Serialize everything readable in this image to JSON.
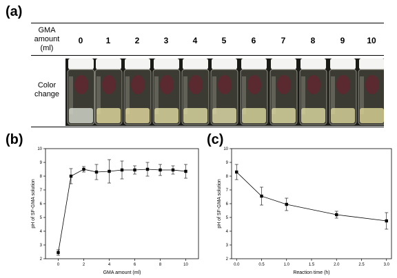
{
  "panels": {
    "a": "(a)",
    "b": "(b)",
    "c": "(c)"
  },
  "table": {
    "header_label": [
      "GMA",
      "amount",
      "(ml)"
    ],
    "amounts": [
      "0",
      "1",
      "2",
      "3",
      "4",
      "5",
      "6",
      "7",
      "8",
      "9",
      "10"
    ],
    "row_label": [
      "Color",
      "change"
    ]
  },
  "chart_data": [
    {
      "type": "line",
      "xlabel": "GMA amount (ml)",
      "ylabel": "pH of SF-GMA solution",
      "xlim": [
        -1,
        11
      ],
      "ylim": [
        2,
        10
      ],
      "xticks": [
        0,
        2,
        4,
        6,
        8,
        10
      ],
      "yticks": [
        2,
        3,
        4,
        5,
        6,
        7,
        8,
        9,
        10
      ],
      "x": [
        0,
        1,
        2,
        3,
        4,
        5,
        6,
        7,
        8,
        9,
        10
      ],
      "y": [
        2.45,
        8.0,
        8.5,
        8.3,
        8.35,
        8.45,
        8.45,
        8.5,
        8.45,
        8.45,
        8.35
      ],
      "err": [
        0.2,
        0.55,
        0.2,
        0.55,
        0.85,
        0.65,
        0.3,
        0.5,
        0.4,
        0.3,
        0.5
      ]
    },
    {
      "type": "line",
      "xlabel": "Reaction time (h)",
      "ylabel": "pH of SF-GMA solution",
      "xlim": [
        -0.1,
        3.1
      ],
      "ylim": [
        2,
        10
      ],
      "xticks": [
        "0.0",
        "0.5",
        "1.0",
        "1.5",
        "2.0",
        "2.5",
        "3.0"
      ],
      "yticks": [
        2,
        3,
        4,
        5,
        6,
        7,
        8,
        9,
        10
      ],
      "x": [
        0,
        0.5,
        1,
        2,
        3
      ],
      "y": [
        8.3,
        6.55,
        5.95,
        5.2,
        4.75
      ],
      "err": [
        0.55,
        0.65,
        0.45,
        0.25,
        0.6
      ]
    }
  ]
}
